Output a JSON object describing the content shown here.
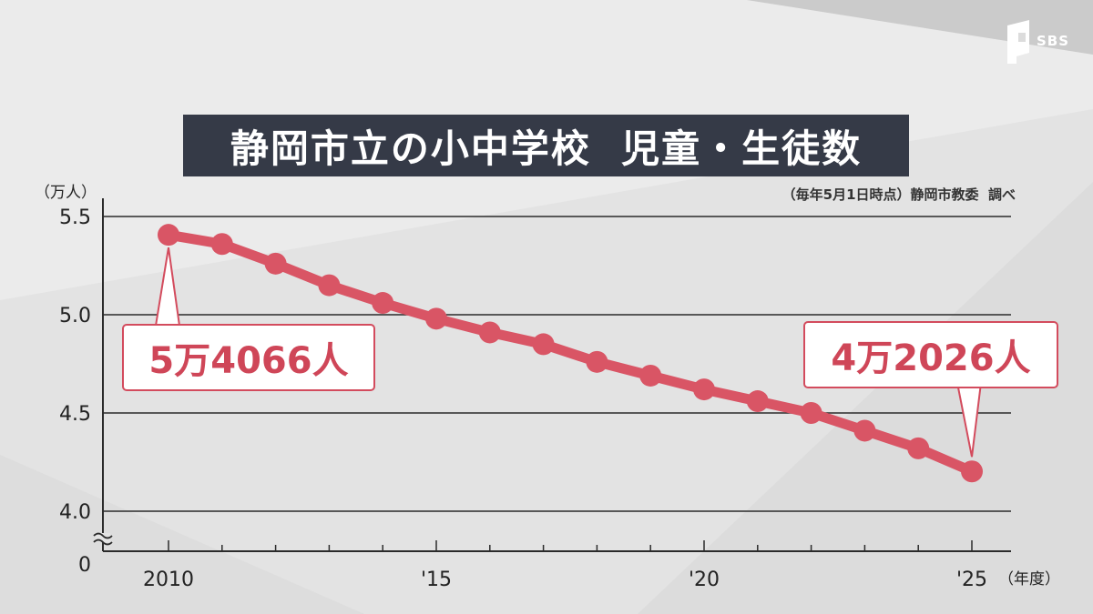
{
  "header": {
    "title": "静岡市立の小中学校  児童・生徒数",
    "source": "（毎年5月1日時点）静岡市教委  調べ"
  },
  "logo": {
    "text": "SBS"
  },
  "chart_data": {
    "type": "line",
    "title": "静岡市立の小中学校  児童・生徒数",
    "ylabel": "（万人）",
    "xlabel": "（年度）",
    "x": [
      2010,
      2011,
      2012,
      2013,
      2014,
      2015,
      2016,
      2017,
      2018,
      2019,
      2020,
      2021,
      2022,
      2023,
      2024,
      2025
    ],
    "series": [
      {
        "values": [
          5.4066,
          5.36,
          5.26,
          5.15,
          5.06,
          4.98,
          4.91,
          4.85,
          4.76,
          4.69,
          4.62,
          4.56,
          4.5,
          4.41,
          4.32,
          4.2026
        ]
      }
    ],
    "ylim": [
      4.0,
      5.5
    ],
    "y_axis_break": true,
    "yticks": [
      "5.5",
      "5.0",
      "4.5",
      "4.0",
      "0"
    ],
    "xticks": [
      {
        "x": 2010,
        "label": "2010"
      },
      {
        "x": 2015,
        "label": "'15"
      },
      {
        "x": 2020,
        "label": "'20"
      },
      {
        "x": 2025,
        "label": "'25"
      }
    ],
    "grid": true,
    "annotations": [
      {
        "x": 2010,
        "text": "5万4066人"
      },
      {
        "x": 2025,
        "text": "4万2026人"
      }
    ],
    "colors": {
      "line": "#d95565",
      "text": "#cf4658"
    }
  }
}
